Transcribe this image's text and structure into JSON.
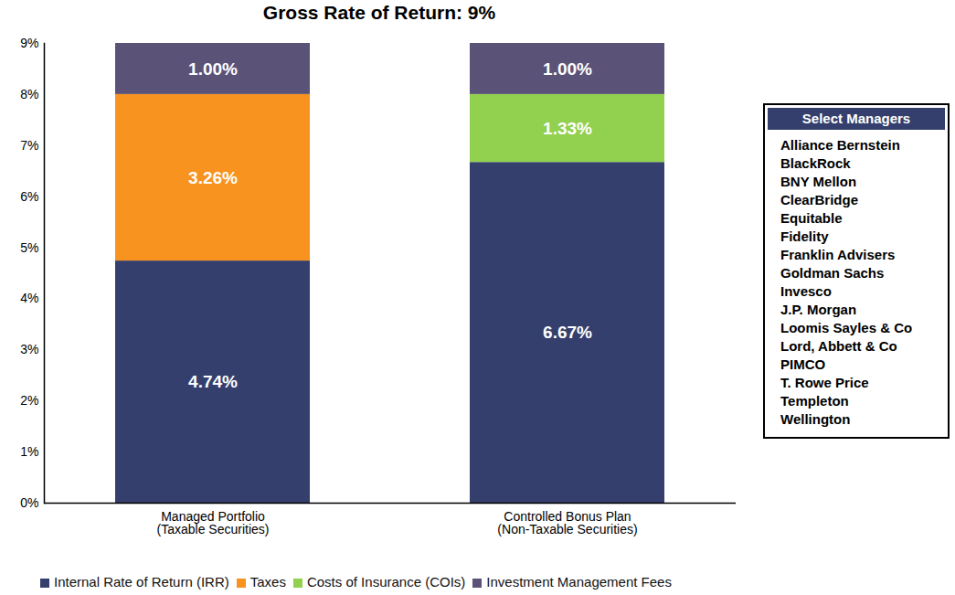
{
  "chart_data": {
    "type": "bar",
    "title": "Gross Rate of Return: 9%",
    "stacked": true,
    "data_labels": true,
    "grid": false,
    "legend": "bottom",
    "categories": [
      "Managed Portfolio\n(Taxable Securities)",
      "Controlled Bonus Plan\n(Non-Taxable Securities)"
    ],
    "series": [
      {
        "name": "Internal Rate of Return (IRR)",
        "color": "#353f6d",
        "values": [
          4.74,
          6.67
        ],
        "value_labels": [
          "4.74%",
          "6.67%"
        ]
      },
      {
        "name": "Taxes",
        "color": "#f7931e",
        "values": [
          3.26,
          null
        ],
        "value_labels": [
          "3.26%",
          null
        ]
      },
      {
        "name": "Costs of Insurance (COIs)",
        "color": "#92d050",
        "values": [
          null,
          1.33
        ],
        "value_labels": [
          null,
          "1.33%"
        ]
      },
      {
        "name": "Investment Management Fees",
        "color": "#5b5277",
        "values": [
          1.0,
          1.0
        ],
        "value_labels": [
          "1.00%",
          "1.00%"
        ]
      }
    ],
    "ylim": [
      0,
      9
    ],
    "yticks": [
      {
        "value": 0,
        "label": "0%"
      },
      {
        "value": 1,
        "label": "1%"
      },
      {
        "value": 2,
        "label": "2%"
      },
      {
        "value": 3,
        "label": "3%"
      },
      {
        "value": 4,
        "label": "4%"
      },
      {
        "value": 5,
        "label": "5%"
      },
      {
        "value": 6,
        "label": "6%"
      },
      {
        "value": 7,
        "label": "7%"
      },
      {
        "value": 8,
        "label": "8%"
      },
      {
        "value": 9,
        "label": "9%"
      }
    ],
    "annotation": {
      "title": "Select Managers",
      "items": [
        "Alliance Bernstein",
        "BlackRock",
        "BNY Mellon",
        "ClearBridge",
        "Equitable",
        "Fidelity",
        "Franklin Advisers",
        "Goldman Sachs",
        "Invesco",
        "J.P. Morgan",
        "Loomis Sayles & Co",
        "Lord, Abbett & Co",
        "PIMCO",
        "T. Rowe Price",
        "Templeton",
        "Wellington"
      ]
    }
  }
}
